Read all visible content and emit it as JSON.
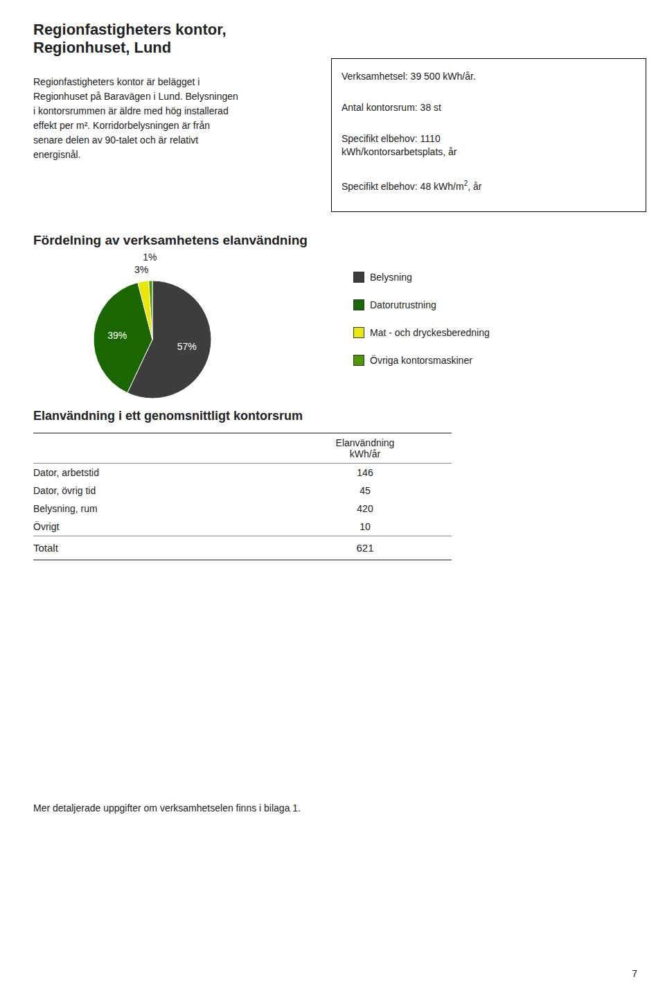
{
  "chart_data": {
    "type": "pie",
    "title": "Fördelning av verksamhetens elanvändning",
    "categories": [
      "Belysning",
      "Datorutrustning",
      "Mat - och dryckesberedning",
      "Övriga kontorsmaskiner"
    ],
    "values": [
      57,
      39,
      3,
      1
    ],
    "value_labels": [
      "57%",
      "39%",
      "3%",
      "1%"
    ],
    "colors": [
      "#3d3d3d",
      "#1a6600",
      "#e8e800",
      "#4d9900"
    ],
    "data_labels": true,
    "legend": "right"
  },
  "page": {
    "title": [
      "Regionfastigheters kontor,",
      "Regionhuset, Lund"
    ],
    "body": [
      "Regionfastigheters kontor är belägget i",
      "Regionhuset på Baravägen i Lund. Belysningen",
      "i kontorsrummen är äldre med hög installerad",
      "effekt per m². Korridorbelysningen är från",
      "senare delen av 90-talet och är relativt",
      "energisnål."
    ],
    "info_box": [
      [
        "Verksamhetsel: 39 500 kWh/år."
      ],
      [
        "Antal kontorsrum: 38 st"
      ],
      [
        "Specifikt elbehov: 1110",
        "kWh/kontorsarbetsplats, år"
      ]
    ],
    "info_box_area": {
      "text": "Specifikt elbehov: 48 kWh/m",
      "sup": "2",
      "after": ", år"
    },
    "table": {
      "title": "Elanvändning i ett genomsnittligt kontorsrum",
      "header": [
        "Elanvändning",
        "kWh/år"
      ],
      "rows": [
        [
          "Dator, arbetstid",
          "146"
        ],
        [
          "Dator, övrig tid",
          "45"
        ],
        [
          "Belysning, rum",
          "420"
        ],
        [
          "Övrigt",
          "10"
        ]
      ],
      "total": [
        "Totalt",
        "621"
      ]
    },
    "footer": "Mer detaljerade uppgifter om verksamhetselen finns i bilaga 1.",
    "page_number": "7"
  }
}
